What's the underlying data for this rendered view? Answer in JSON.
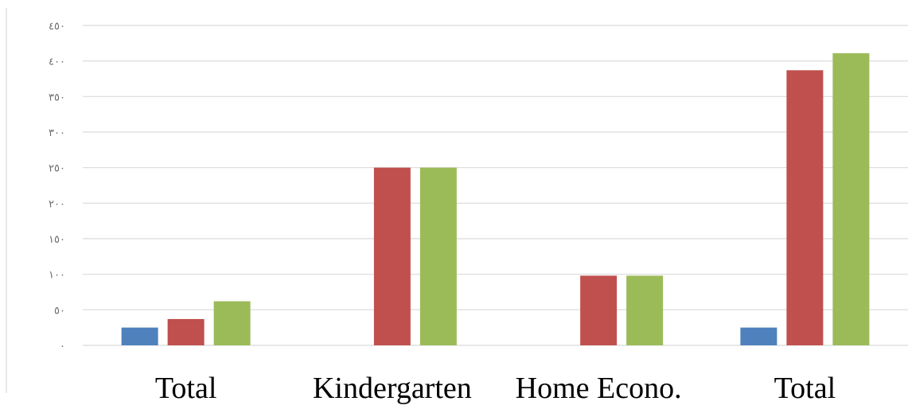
{
  "chart_data": {
    "type": "bar",
    "title": "",
    "xlabel": "",
    "ylabel": "",
    "categories": [
      "Total",
      "Kindergarten",
      "Home Econo.",
      "Total"
    ],
    "y_tick_labels": [
      "٠",
      "٥٠",
      "١٠٠",
      "١٥٠",
      "٢٠٠",
      "٢٥٠",
      "٣٠٠",
      "٣٥٠",
      "٤٠٠",
      "٤٥٠"
    ],
    "y_ticks": [
      0,
      50,
      100,
      150,
      200,
      250,
      300,
      350,
      400,
      450
    ],
    "ylim": [
      0,
      450
    ],
    "grid": true,
    "legend": "none",
    "series": [
      {
        "color": "#4f81bd",
        "values": [
          25,
          0,
          0,
          25
        ]
      },
      {
        "color": "#c0504d",
        "values": [
          37,
          250,
          98,
          387
        ]
      },
      {
        "color": "#9bbb59",
        "values": [
          62,
          250,
          98,
          411
        ]
      }
    ]
  }
}
